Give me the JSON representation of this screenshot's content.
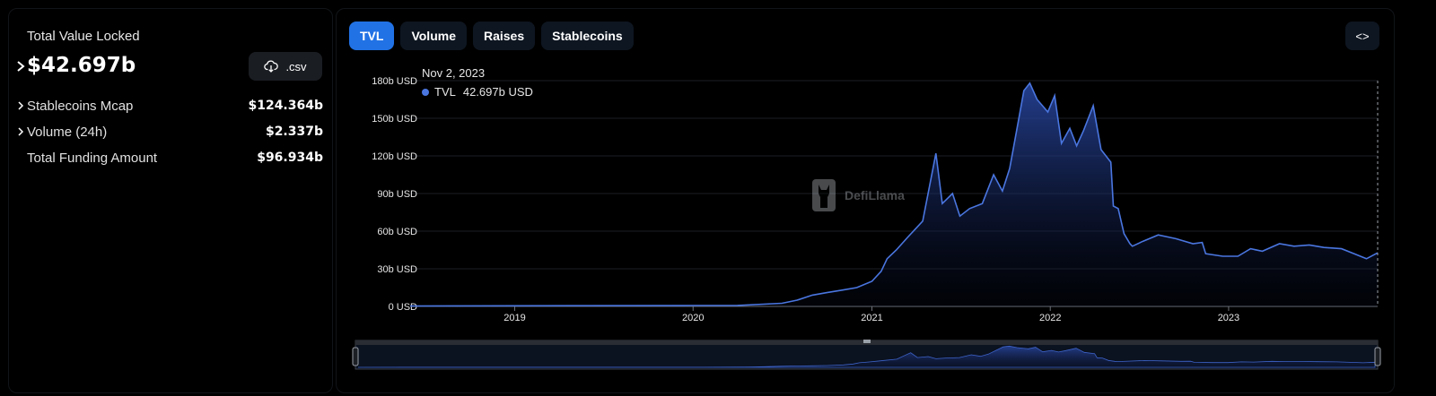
{
  "summary": {
    "tvl_label": "Total Value Locked",
    "tvl_value": "$42.697b",
    "csv_label": ".csv",
    "stats": [
      {
        "label": "Stablecoins Mcap",
        "value": "$124.364b",
        "expandable": true
      },
      {
        "label": "Volume (24h)",
        "value": "$2.337b",
        "expandable": true
      },
      {
        "label": "Total Funding Amount",
        "value": "$96.934b",
        "expandable": false
      }
    ]
  },
  "tabs": [
    {
      "label": "TVL",
      "active": true
    },
    {
      "label": "Volume",
      "active": false
    },
    {
      "label": "Raises",
      "active": false
    },
    {
      "label": "Stablecoins",
      "active": false
    }
  ],
  "embed_label": "<>",
  "tooltip": {
    "date": "Nov 2, 2023",
    "series": "TVL",
    "value": "42.697b USD"
  },
  "watermark": "DefiLlama",
  "colors": {
    "accent": "#2172e5",
    "line": "#4a76e0",
    "tab_bg": "#0e1621"
  },
  "chart_data": {
    "type": "area",
    "title": "",
    "xlabel": "",
    "ylabel": "",
    "y_unit": "USD",
    "y_ticks": [
      "0 USD",
      "30b USD",
      "60b USD",
      "90b USD",
      "120b USD",
      "150b USD",
      "180b USD"
    ],
    "x_ticks": [
      "2019",
      "2020",
      "2021",
      "2022",
      "2023"
    ],
    "ylim": [
      0,
      180
    ],
    "xlim": [
      "2018-06-01",
      "2023-11-02"
    ],
    "grid": true,
    "series": [
      {
        "name": "TVL",
        "x": [
          "2018-06-01",
          "2018-09-01",
          "2019-01-01",
          "2019-06-01",
          "2020-01-01",
          "2020-04-01",
          "2020-07-01",
          "2020-08-01",
          "2020-09-01",
          "2020-10-01",
          "2020-11-01",
          "2020-12-01",
          "2021-01-01",
          "2021-01-20",
          "2021-02-01",
          "2021-02-20",
          "2021-03-15",
          "2021-04-15",
          "2021-05-12",
          "2021-05-25",
          "2021-06-15",
          "2021-06-30",
          "2021-07-20",
          "2021-08-15",
          "2021-09-07",
          "2021-09-25",
          "2021-10-10",
          "2021-10-25",
          "2021-11-08",
          "2021-11-20",
          "2021-12-05",
          "2021-12-27",
          "2022-01-10",
          "2022-01-24",
          "2022-02-10",
          "2022-02-24",
          "2022-03-10",
          "2022-03-30",
          "2022-04-15",
          "2022-05-05",
          "2022-05-10",
          "2022-05-20",
          "2022-06-01",
          "2022-06-13",
          "2022-06-18",
          "2022-07-10",
          "2022-08-10",
          "2022-09-15",
          "2022-10-20",
          "2022-11-08",
          "2022-11-15",
          "2022-12-20",
          "2023-01-20",
          "2023-02-15",
          "2023-03-11",
          "2023-04-15",
          "2023-05-15",
          "2023-06-15",
          "2023-07-15",
          "2023-08-20",
          "2023-09-15",
          "2023-10-10",
          "2023-11-02"
        ],
        "values": [
          0.3,
          0.4,
          0.5,
          0.6,
          0.7,
          0.8,
          2.5,
          5,
          9,
          11,
          13,
          15,
          20,
          28,
          38,
          45,
          55,
          68,
          122,
          82,
          90,
          72,
          78,
          82,
          105,
          92,
          110,
          142,
          172,
          178,
          165,
          155,
          168,
          130,
          142,
          128,
          140,
          160,
          125,
          115,
          80,
          78,
          58,
          50,
          48,
          52,
          57,
          54,
          50,
          51,
          42,
          40,
          40,
          46,
          44,
          50,
          48,
          49,
          47,
          46,
          42,
          38,
          42.697
        ]
      }
    ]
  }
}
